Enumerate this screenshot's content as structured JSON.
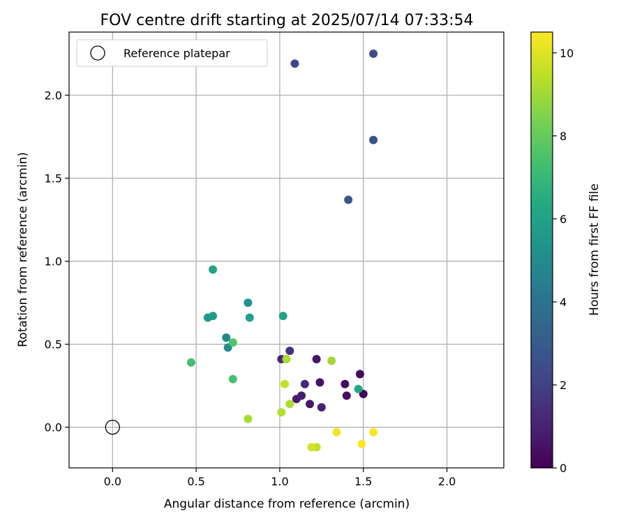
{
  "chart_data": {
    "type": "scatter",
    "title": "FOV centre drift starting at 2025/07/14 07:33:54",
    "xlabel": "Angular distance from reference (arcmin)",
    "ylabel": "Rotation from reference (arcmin)",
    "xlim": [
      -0.26,
      2.34
    ],
    "ylim": [
      -0.245,
      2.38
    ],
    "xticks": [
      0.0,
      0.5,
      1.0,
      1.5,
      2.0
    ],
    "xtick_labels": [
      "0.0",
      "0.5",
      "1.0",
      "1.5",
      "2.0"
    ],
    "yticks": [
      0.0,
      0.5,
      1.0,
      1.5,
      2.0
    ],
    "ytick_labels": [
      "0.0",
      "0.5",
      "1.0",
      "1.5",
      "2.0"
    ],
    "grid": true,
    "legend": {
      "position": "top-left",
      "entries": [
        "Reference platepar"
      ]
    },
    "reference_point": {
      "x": 0.0,
      "y": 0.0
    },
    "colorbar": {
      "label": "Hours from first FF file",
      "range": [
        0,
        10.5
      ],
      "ticks": [
        0,
        2,
        4,
        6,
        8,
        10
      ],
      "tick_labels": [
        "0",
        "2",
        "4",
        "6",
        "8",
        "10"
      ],
      "colormap": "viridis"
    },
    "points": [
      {
        "x": 1.5,
        "y": 0.2,
        "c": 0.1
      },
      {
        "x": 1.48,
        "y": 0.32,
        "c": 0.2
      },
      {
        "x": 1.39,
        "y": 0.26,
        "c": 0.3
      },
      {
        "x": 1.4,
        "y": 0.19,
        "c": 0.4
      },
      {
        "x": 1.24,
        "y": 0.27,
        "c": 0.5
      },
      {
        "x": 1.22,
        "y": 0.41,
        "c": 0.6
      },
      {
        "x": 1.18,
        "y": 0.14,
        "c": 0.7
      },
      {
        "x": 1.1,
        "y": 0.17,
        "c": 0.8
      },
      {
        "x": 1.13,
        "y": 0.19,
        "c": 0.9
      },
      {
        "x": 1.25,
        "y": 0.12,
        "c": 1.0
      },
      {
        "x": 1.01,
        "y": 0.41,
        "c": 1.1
      },
      {
        "x": 1.15,
        "y": 0.26,
        "c": 1.2
      },
      {
        "x": 1.06,
        "y": 0.46,
        "c": 1.4
      },
      {
        "x": 1.09,
        "y": 2.19,
        "c": 2.2
      },
      {
        "x": 1.56,
        "y": 2.25,
        "c": 2.4
      },
      {
        "x": 1.56,
        "y": 1.73,
        "c": 2.6
      },
      {
        "x": 1.41,
        "y": 1.37,
        "c": 2.8
      },
      {
        "x": 0.68,
        "y": 0.54,
        "c": 4.9
      },
      {
        "x": 0.69,
        "y": 0.48,
        "c": 5.0
      },
      {
        "x": 0.81,
        "y": 0.75,
        "c": 5.3
      },
      {
        "x": 0.57,
        "y": 0.66,
        "c": 5.6
      },
      {
        "x": 0.6,
        "y": 0.67,
        "c": 5.7
      },
      {
        "x": 0.82,
        "y": 0.66,
        "c": 5.9
      },
      {
        "x": 1.02,
        "y": 0.67,
        "c": 6.0
      },
      {
        "x": 0.6,
        "y": 0.95,
        "c": 6.1
      },
      {
        "x": 1.47,
        "y": 0.23,
        "c": 6.3
      },
      {
        "x": 0.47,
        "y": 0.39,
        "c": 7.3
      },
      {
        "x": 0.72,
        "y": 0.29,
        "c": 7.4
      },
      {
        "x": 0.72,
        "y": 0.51,
        "c": 7.6
      },
      {
        "x": 1.31,
        "y": 0.4,
        "c": 9.0
      },
      {
        "x": 1.04,
        "y": 0.41,
        "c": 9.2
      },
      {
        "x": 0.81,
        "y": 0.05,
        "c": 9.1
      },
      {
        "x": 1.06,
        "y": 0.14,
        "c": 9.2
      },
      {
        "x": 1.01,
        "y": 0.09,
        "c": 9.3
      },
      {
        "x": 1.03,
        "y": 0.26,
        "c": 9.6
      },
      {
        "x": 1.22,
        "y": -0.12,
        "c": 9.5
      },
      {
        "x": 1.19,
        "y": -0.12,
        "c": 9.8
      },
      {
        "x": 1.34,
        "y": -0.03,
        "c": 10.3
      },
      {
        "x": 1.56,
        "y": -0.03,
        "c": 10.4
      },
      {
        "x": 1.49,
        "y": -0.1,
        "c": 10.5
      }
    ]
  }
}
